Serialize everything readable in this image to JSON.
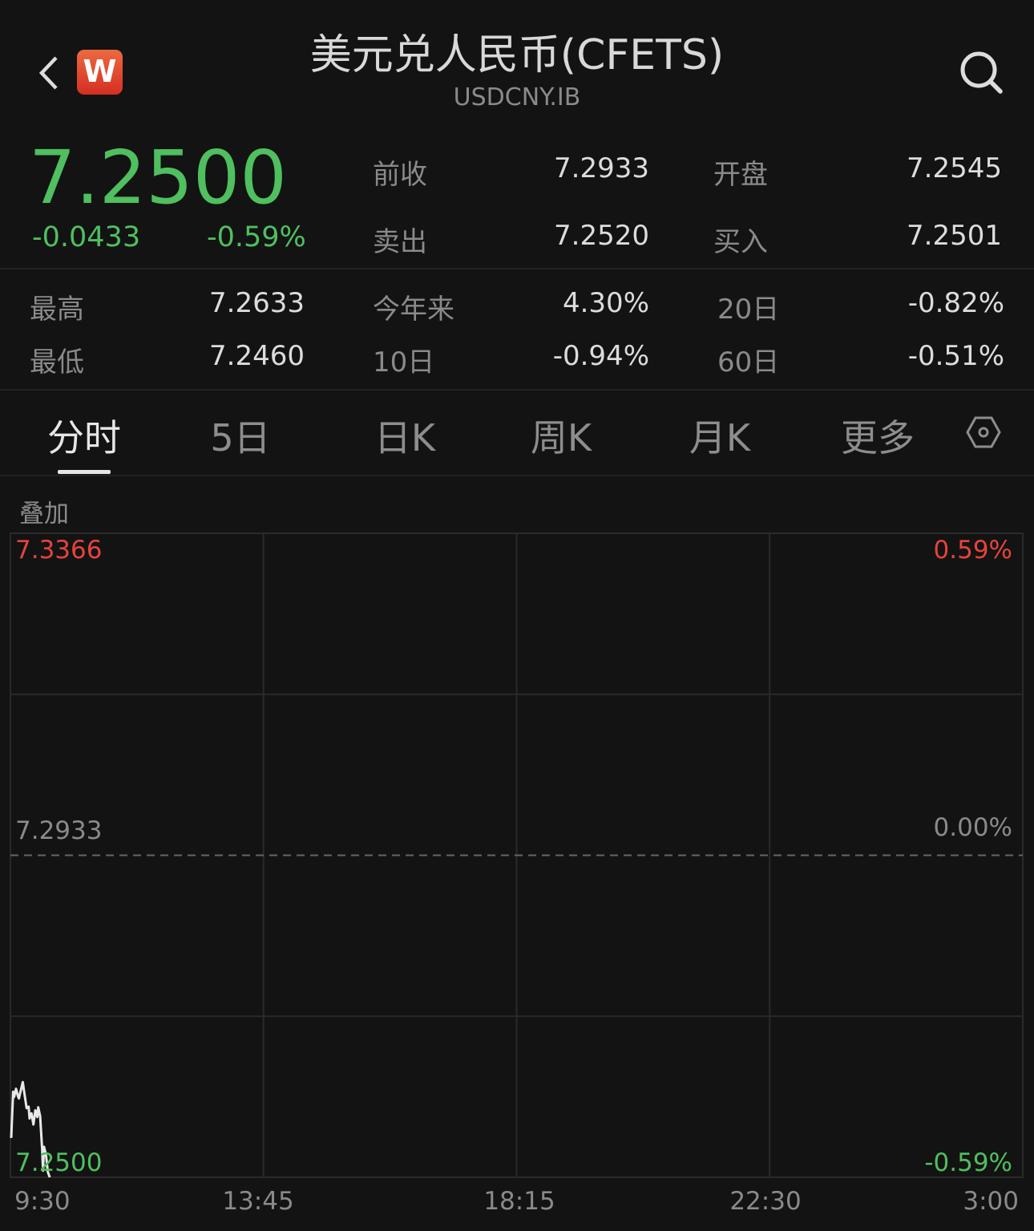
{
  "header": {
    "title": "美元兑人民币(CFETS)",
    "code": "USDCNY.IB",
    "logo": "W",
    "back_icon": "chevron-left-icon",
    "search_icon": "search-icon"
  },
  "quote": {
    "price": "7.2500",
    "change": "-0.0433",
    "change_pct": "-0.59%",
    "fields": [
      {
        "label": "前收",
        "value": "7.2933"
      },
      {
        "label": "开盘",
        "value": "7.2545"
      },
      {
        "label": "卖出",
        "value": "7.2520"
      },
      {
        "label": "买入",
        "value": "7.2501"
      }
    ]
  },
  "stats": [
    {
      "label": "最高",
      "value": "7.2633"
    },
    {
      "label": "今年来",
      "value": "4.30%"
    },
    {
      "label": "20日",
      "value": "-0.82%"
    },
    {
      "label": "最低",
      "value": "7.2460"
    },
    {
      "label": "10日",
      "value": "-0.94%"
    },
    {
      "label": "60日",
      "value": "-0.51%"
    }
  ],
  "tabs": [
    {
      "label": "分时",
      "active": true
    },
    {
      "label": "5日"
    },
    {
      "label": "日K"
    },
    {
      "label": "周K"
    },
    {
      "label": "月K"
    },
    {
      "label": "更多"
    }
  ],
  "settings_icon": "hexagon-settings-icon",
  "overlay_label": "叠加",
  "colors": {
    "up": "#e5433c",
    "down": "#4fbf5f",
    "line": "#e8e8e8",
    "grid": "#2a2a2a"
  },
  "chart_data": {
    "type": "line",
    "y_labels_left": [
      "7.3366",
      "7.2933",
      "7.2500"
    ],
    "y_labels_right": [
      "0.59%",
      "0.00%",
      "-0.59%"
    ],
    "ylim": [
      7.25,
      7.3366
    ],
    "prev_close": 7.2933,
    "x_ticks": [
      "9:30",
      "13:45",
      "18:15",
      "22:30",
      "3:00"
    ],
    "x_minutes_range": [
      0,
      1050
    ],
    "series": [
      {
        "x": [
          0,
          2,
          3,
          5,
          7,
          8,
          12,
          13,
          16,
          18,
          19,
          21,
          23,
          25,
          27,
          28,
          30,
          32,
          33,
          34,
          36,
          38,
          40
        ],
        "y": [
          7.2553,
          7.2615,
          7.2608,
          7.2619,
          7.2609,
          7.2606,
          7.2628,
          7.2619,
          7.2593,
          7.2595,
          7.2579,
          7.2586,
          7.2571,
          7.259,
          7.2581,
          7.2594,
          7.2582,
          7.2539,
          7.2509,
          7.2541,
          7.2531,
          7.2507,
          7.25
        ]
      }
    ]
  }
}
